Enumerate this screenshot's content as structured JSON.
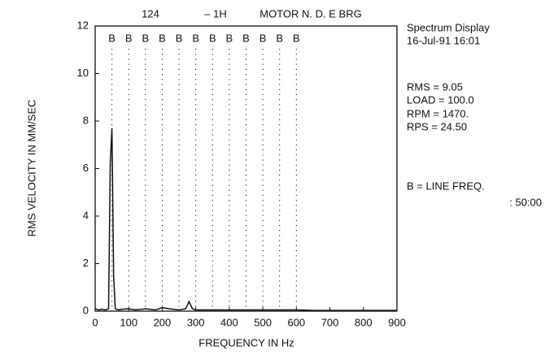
{
  "chart_data": {
    "type": "line",
    "header": [
      "124",
      "– 1H",
      "MOTOR N. D. E BRG"
    ],
    "side_info": [
      "Spectrum Display",
      "16-Jul-91   16:01",
      "RMS = 9.05",
      "LOAD = 100.0",
      "RPM = 1470.",
      "RPS = 24.50",
      "B = LINE FREQ.",
      ": 50:00"
    ],
    "x_label": "FREQUENCY IN Hz",
    "y_label": "RMS VELOCITY IN MM/SEC",
    "markers": {
      "label": "B",
      "x": [
        50,
        100,
        150,
        200,
        250,
        300,
        350,
        400,
        450,
        500,
        550,
        600
      ]
    },
    "x": [
      0,
      10,
      20,
      30,
      40,
      45,
      50,
      55,
      60,
      70,
      80,
      100,
      120,
      150,
      180,
      200,
      220,
      250,
      270,
      280,
      290,
      300,
      330,
      350,
      400,
      450,
      500,
      550,
      600,
      650,
      700,
      750,
      800,
      850,
      900
    ],
    "series": [
      {
        "color": "#111111",
        "values": [
          0.1,
          0.05,
          0.08,
          0.05,
          0.1,
          6.2,
          7.7,
          1.5,
          0.1,
          0.05,
          0.08,
          0.1,
          0.05,
          0.1,
          0.05,
          0.15,
          0.1,
          0.05,
          0.1,
          0.4,
          0.1,
          0.05,
          0.05,
          0.05,
          0.05,
          0.05,
          0.05,
          0.05,
          0.05,
          0.03,
          0.03,
          0.03,
          0.03,
          0.03,
          0.03
        ]
      }
    ],
    "xlim": [
      0,
      900
    ],
    "xticks": [
      0,
      100,
      200,
      300,
      400,
      500,
      600,
      700,
      800,
      900
    ],
    "ylim": [
      0,
      12
    ],
    "yticks": [
      0,
      2,
      4,
      6,
      8,
      10,
      12
    ]
  }
}
